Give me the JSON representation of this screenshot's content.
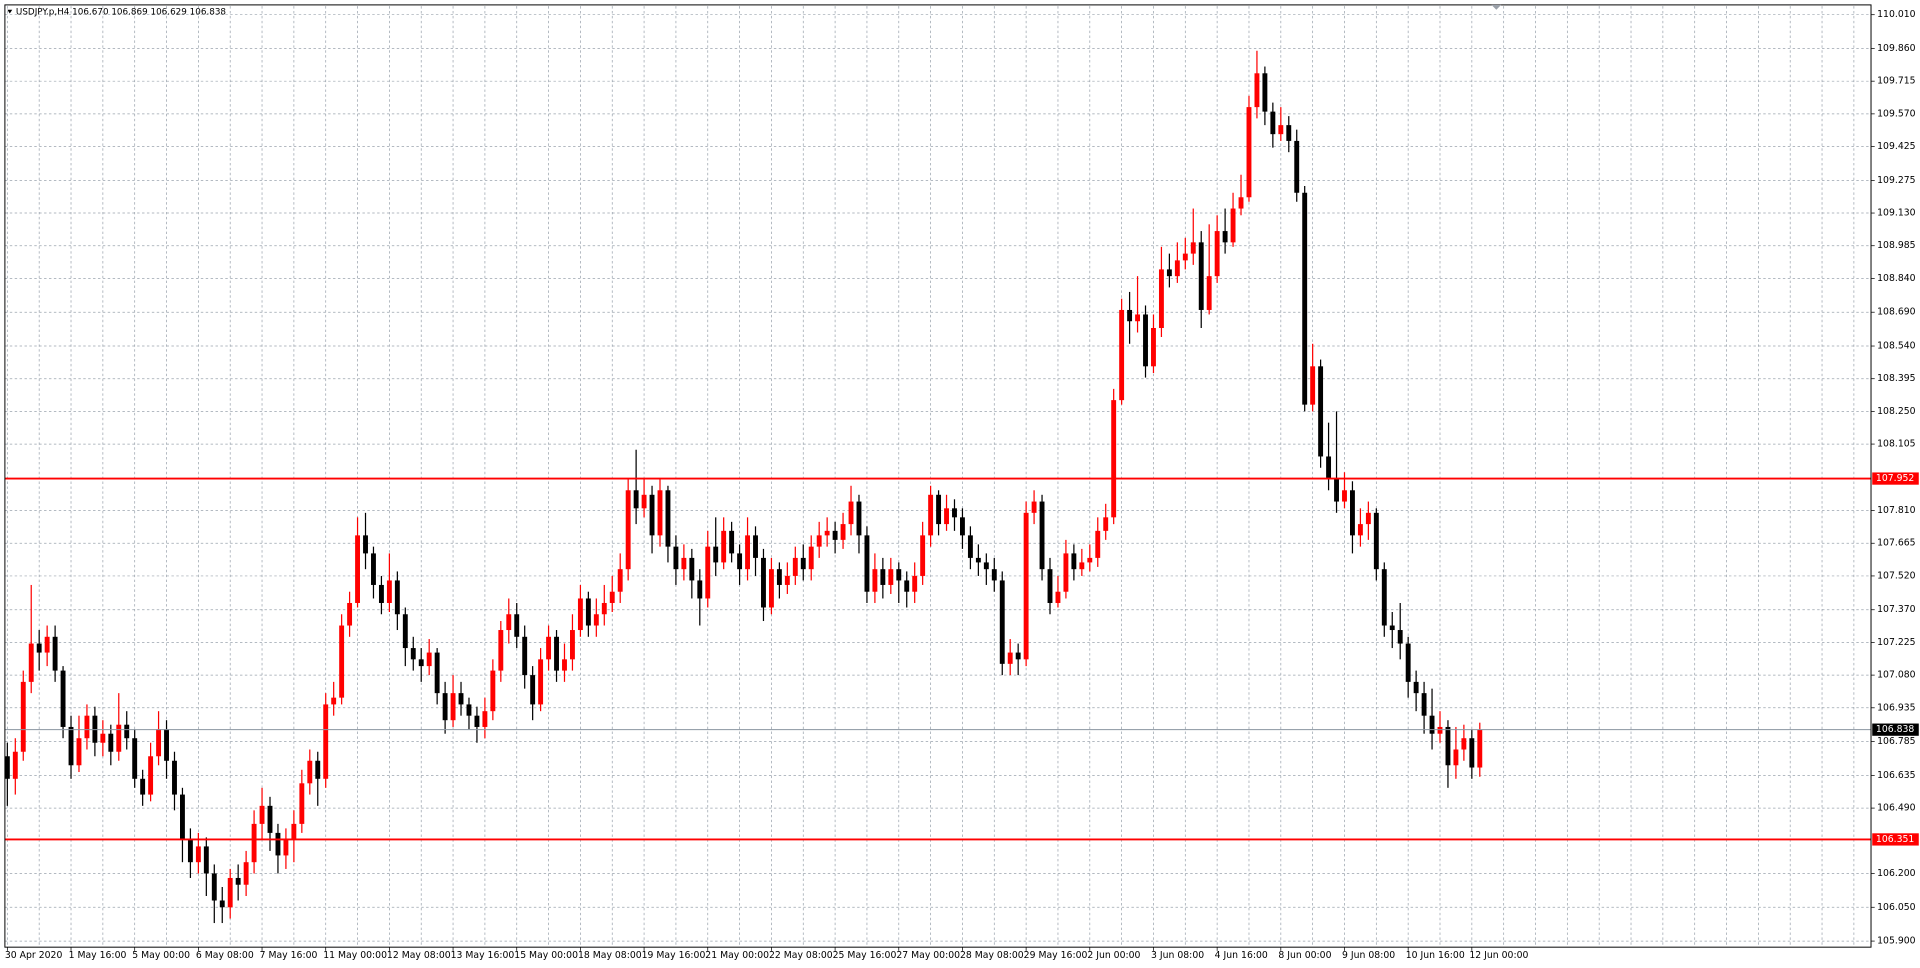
{
  "chart_data": {
    "type": "candlestick",
    "title": "USDJPY.p,H4  106.670 106.869 106.629 106.838",
    "up_color": "#ff0000",
    "down_color": "#000000",
    "grid": true,
    "ylim": [
      105.873,
      110.048
    ],
    "yticks": [
      {
        "value": 110.01,
        "label": "110.010"
      },
      {
        "value": 109.86,
        "label": "109.860"
      },
      109.715,
      {
        "value": 109.57,
        "label": "109.570"
      },
      109.425,
      109.275,
      {
        "value": 109.13,
        "label": "109.130"
      },
      108.985,
      {
        "value": 108.84,
        "label": "108.840"
      },
      {
        "value": 108.69,
        "label": "108.690"
      },
      {
        "value": 108.54,
        "label": "108.540"
      },
      108.395,
      {
        "value": 108.25,
        "label": "108.250"
      },
      108.105,
      {
        "value": 107.81,
        "label": "107.810"
      },
      107.665,
      {
        "value": 107.52,
        "label": "107.520"
      },
      {
        "value": 107.37,
        "label": "107.370"
      },
      107.225,
      {
        "value": 107.08,
        "label": "107.080"
      },
      106.935,
      106.785,
      106.635,
      {
        "value": 106.49,
        "label": "106.490"
      },
      {
        "value": 106.2,
        "label": "106.200"
      },
      {
        "value": 106.05,
        "label": "106.050"
      },
      {
        "value": 105.9,
        "label": "105.900"
      }
    ],
    "levels": [
      {
        "value": 107.952,
        "color": "#ff0000"
      },
      {
        "value": 106.351,
        "color": "#ff0000"
      }
    ],
    "bid": {
      "value": 106.838,
      "color": "#8a94a0"
    },
    "categories": [
      "30 Apr 2020",
      null,
      null,
      null,
      null,
      null,
      null,
      null,
      "1 May 16:00",
      null,
      null,
      null,
      null,
      null,
      null,
      null,
      "5 May 00:00",
      null,
      null,
      null,
      null,
      null,
      null,
      null,
      "6 May 08:00",
      null,
      null,
      null,
      null,
      null,
      null,
      null,
      "7 May 16:00",
      null,
      null,
      null,
      null,
      null,
      null,
      null,
      "11 May 00:00",
      null,
      null,
      null,
      null,
      null,
      null,
      null,
      "12 May 08:00",
      null,
      null,
      null,
      null,
      null,
      null,
      null,
      "13 May 16:00",
      null,
      null,
      null,
      null,
      null,
      null,
      null,
      "15 May 00:00",
      null,
      null,
      null,
      null,
      null,
      null,
      null,
      "18 May 08:00",
      null,
      null,
      null,
      null,
      null,
      null,
      null,
      "19 May 16:00",
      null,
      null,
      null,
      null,
      null,
      null,
      null,
      "21 May 00:00",
      null,
      null,
      null,
      null,
      null,
      null,
      null,
      "22 May 08:00",
      null,
      null,
      null,
      null,
      null,
      null,
      null,
      "25 May 16:00",
      null,
      null,
      null,
      null,
      null,
      null,
      null,
      "27 May 00:00",
      null,
      null,
      null,
      null,
      null,
      null,
      null,
      "28 May 08:00",
      null,
      null,
      null,
      null,
      null,
      null,
      null,
      "29 May 16:00",
      null,
      null,
      null,
      null,
      null,
      null,
      null,
      "2 Jun 00:00",
      null,
      null,
      null,
      null,
      null,
      null,
      null,
      "3 Jun 08:00",
      null,
      null,
      null,
      null,
      null,
      null,
      null,
      "4 Jun 16:00",
      null,
      null,
      null,
      null,
      null,
      null,
      null,
      "8 Jun 00:00",
      null,
      null,
      null,
      null,
      null,
      null,
      null,
      "9 Jun 08:00",
      null,
      null,
      null,
      null,
      null,
      null,
      null,
      "10 Jun 16:00",
      null,
      null,
      null,
      null,
      null,
      null,
      null,
      "12 Jun 00:00",
      null
    ],
    "candles": [
      [
        106.72,
        106.78,
        106.5,
        106.62
      ],
      [
        106.62,
        106.8,
        106.55,
        106.74
      ],
      [
        106.74,
        107.1,
        106.7,
        107.05
      ],
      [
        107.05,
        107.48,
        107.0,
        107.22
      ],
      [
        107.22,
        107.28,
        107.1,
        107.18
      ],
      [
        107.18,
        107.3,
        107.12,
        107.25
      ],
      [
        107.25,
        107.3,
        107.05,
        107.1
      ],
      [
        107.1,
        107.12,
        106.8,
        106.85
      ],
      [
        106.85,
        106.9,
        106.62,
        106.68
      ],
      [
        106.68,
        106.9,
        106.65,
        106.8
      ],
      [
        106.8,
        106.95,
        106.75,
        106.9
      ],
      [
        106.9,
        106.94,
        106.72,
        106.78
      ],
      [
        106.78,
        106.88,
        106.72,
        106.82
      ],
      [
        106.82,
        106.86,
        106.68,
        106.74
      ],
      [
        106.74,
        107.0,
        106.7,
        106.86
      ],
      [
        106.86,
        106.92,
        106.75,
        106.8
      ],
      [
        106.8,
        106.84,
        106.58,
        106.62
      ],
      [
        106.62,
        106.66,
        106.5,
        106.55
      ],
      [
        106.55,
        106.78,
        106.52,
        106.72
      ],
      [
        106.72,
        106.92,
        106.68,
        106.84
      ],
      [
        106.84,
        106.88,
        106.62,
        106.7
      ],
      [
        106.7,
        106.74,
        106.48,
        106.55
      ],
      [
        106.55,
        106.58,
        106.25,
        106.35
      ],
      [
        106.35,
        106.4,
        106.18,
        106.25
      ],
      [
        106.25,
        106.38,
        106.2,
        106.32
      ],
      [
        106.32,
        106.36,
        106.1,
        106.2
      ],
      [
        106.2,
        106.24,
        105.98,
        106.08
      ],
      [
        106.08,
        106.14,
        105.98,
        106.05
      ],
      [
        106.05,
        106.22,
        106.0,
        106.18
      ],
      [
        106.18,
        106.24,
        106.08,
        106.15
      ],
      [
        106.15,
        106.3,
        106.1,
        106.25
      ],
      [
        106.25,
        106.48,
        106.2,
        106.42
      ],
      [
        106.42,
        106.58,
        106.35,
        106.5
      ],
      [
        106.5,
        106.54,
        106.3,
        106.38
      ],
      [
        106.38,
        106.42,
        106.2,
        106.28
      ],
      [
        106.28,
        106.4,
        106.22,
        106.35
      ],
      [
        106.35,
        106.48,
        106.25,
        106.42
      ],
      [
        106.42,
        106.66,
        106.38,
        106.6
      ],
      [
        106.6,
        106.75,
        106.55,
        106.7
      ],
      [
        106.7,
        106.74,
        106.5,
        106.62
      ],
      [
        106.62,
        107.0,
        106.58,
        106.95
      ],
      [
        106.95,
        107.05,
        106.9,
        106.98
      ],
      [
        106.98,
        107.35,
        106.95,
        107.3
      ],
      [
        107.3,
        107.45,
        107.25,
        107.4
      ],
      [
        107.4,
        107.78,
        107.38,
        107.7
      ],
      [
        107.7,
        107.8,
        107.55,
        107.62
      ],
      [
        107.62,
        107.65,
        107.42,
        107.48
      ],
      [
        107.48,
        107.52,
        107.35,
        107.4
      ],
      [
        107.4,
        107.62,
        107.36,
        107.5
      ],
      [
        107.5,
        107.54,
        107.28,
        107.35
      ],
      [
        107.35,
        107.38,
        107.12,
        107.2
      ],
      [
        107.2,
        107.25,
        107.1,
        107.15
      ],
      [
        107.15,
        107.2,
        107.05,
        107.12
      ],
      [
        107.12,
        107.24,
        107.08,
        107.18
      ],
      [
        107.18,
        107.2,
        106.95,
        107.0
      ],
      [
        107.0,
        107.05,
        106.82,
        106.88
      ],
      [
        106.88,
        107.08,
        106.85,
        107.0
      ],
      [
        107.0,
        107.05,
        106.9,
        106.95
      ],
      [
        106.95,
        106.98,
        106.84,
        106.9
      ],
      [
        106.9,
        106.94,
        106.78,
        106.85
      ],
      [
        106.85,
        106.98,
        106.8,
        106.92
      ],
      [
        106.92,
        107.15,
        106.88,
        107.1
      ],
      [
        107.1,
        107.32,
        107.05,
        107.28
      ],
      [
        107.28,
        107.42,
        107.22,
        107.35
      ],
      [
        107.35,
        107.4,
        107.2,
        107.25
      ],
      [
        107.25,
        107.3,
        107.02,
        107.08
      ],
      [
        107.08,
        107.12,
        106.88,
        106.95
      ],
      [
        106.95,
        107.2,
        106.92,
        107.15
      ],
      [
        107.15,
        107.3,
        107.1,
        107.25
      ],
      [
        107.25,
        107.28,
        107.05,
        107.1
      ],
      [
        107.1,
        107.22,
        107.05,
        107.15
      ],
      [
        107.15,
        107.35,
        107.1,
        107.28
      ],
      [
        107.28,
        107.48,
        107.25,
        107.42
      ],
      [
        107.42,
        107.45,
        107.25,
        107.3
      ],
      [
        107.3,
        107.42,
        107.25,
        107.35
      ],
      [
        107.35,
        107.48,
        107.3,
        107.4
      ],
      [
        107.4,
        107.52,
        107.36,
        107.45
      ],
      [
        107.45,
        107.62,
        107.4,
        107.55
      ],
      [
        107.55,
        107.95,
        107.5,
        107.9
      ],
      [
        107.9,
        108.08,
        107.75,
        107.82
      ],
      [
        107.82,
        107.95,
        107.78,
        107.88
      ],
      [
        107.88,
        107.92,
        107.62,
        107.7
      ],
      [
        107.7,
        107.95,
        107.65,
        107.9
      ],
      [
        107.9,
        107.92,
        107.58,
        107.65
      ],
      [
        107.65,
        107.7,
        107.48,
        107.55
      ],
      [
        107.55,
        107.66,
        107.5,
        107.6
      ],
      [
        107.6,
        107.64,
        107.42,
        107.5
      ],
      [
        107.5,
        107.55,
        107.3,
        107.42
      ],
      [
        107.42,
        107.72,
        107.38,
        107.65
      ],
      [
        107.65,
        107.78,
        107.52,
        107.58
      ],
      [
        107.58,
        107.78,
        107.55,
        107.72
      ],
      [
        107.72,
        107.76,
        107.58,
        107.62
      ],
      [
        107.62,
        107.66,
        107.48,
        107.55
      ],
      [
        107.55,
        107.78,
        107.5,
        107.7
      ],
      [
        107.7,
        107.74,
        107.52,
        107.6
      ],
      [
        107.6,
        107.64,
        107.32,
        107.38
      ],
      [
        107.38,
        107.6,
        107.35,
        107.55
      ],
      [
        107.55,
        107.58,
        107.42,
        107.48
      ],
      [
        107.48,
        107.58,
        107.44,
        107.52
      ],
      [
        107.52,
        107.65,
        107.48,
        107.6
      ],
      [
        107.6,
        107.66,
        107.5,
        107.55
      ],
      [
        107.55,
        107.7,
        107.5,
        107.65
      ],
      [
        107.65,
        107.76,
        107.6,
        107.7
      ],
      [
        107.7,
        107.78,
        107.65,
        107.72
      ],
      [
        107.72,
        107.76,
        107.62,
        107.68
      ],
      [
        107.68,
        107.8,
        107.64,
        107.75
      ],
      [
        107.75,
        107.92,
        107.7,
        107.85
      ],
      [
        107.85,
        107.88,
        107.62,
        107.7
      ],
      [
        107.7,
        107.74,
        107.4,
        107.45
      ],
      [
        107.45,
        107.62,
        107.4,
        107.55
      ],
      [
        107.55,
        107.6,
        107.42,
        107.48
      ],
      [
        107.48,
        107.6,
        107.44,
        107.55
      ],
      [
        107.55,
        107.58,
        107.4,
        107.5
      ],
      [
        107.5,
        107.54,
        107.38,
        107.45
      ],
      [
        107.45,
        107.58,
        107.4,
        107.52
      ],
      [
        107.52,
        107.76,
        107.48,
        107.7
      ],
      [
        107.7,
        107.92,
        107.65,
        107.88
      ],
      [
        107.88,
        107.9,
        107.7,
        107.75
      ],
      [
        107.75,
        107.88,
        107.72,
        107.82
      ],
      [
        107.82,
        107.86,
        107.72,
        107.78
      ],
      [
        107.78,
        107.82,
        107.64,
        107.7
      ],
      [
        107.7,
        107.74,
        107.55,
        107.6
      ],
      [
        107.6,
        107.66,
        107.52,
        107.58
      ],
      [
        107.58,
        107.62,
        107.48,
        107.55
      ],
      [
        107.55,
        107.6,
        107.45,
        107.5
      ],
      [
        107.5,
        107.54,
        107.08,
        107.13
      ],
      [
        107.13,
        107.24,
        107.08,
        107.18
      ],
      [
        107.18,
        107.22,
        107.08,
        107.15
      ],
      [
        107.15,
        107.85,
        107.12,
        107.8
      ],
      [
        107.8,
        107.9,
        107.75,
        107.85
      ],
      [
        107.85,
        107.88,
        107.5,
        107.55
      ],
      [
        107.55,
        107.6,
        107.35,
        107.4
      ],
      [
        107.4,
        107.52,
        107.38,
        107.45
      ],
      [
        107.45,
        107.68,
        107.42,
        107.62
      ],
      [
        107.62,
        107.66,
        107.5,
        107.55
      ],
      [
        107.55,
        107.64,
        107.52,
        107.58
      ],
      [
        107.58,
        107.66,
        107.54,
        107.6
      ],
      [
        107.6,
        107.78,
        107.56,
        107.72
      ],
      [
        107.72,
        107.84,
        107.68,
        107.78
      ],
      [
        107.78,
        108.35,
        107.75,
        108.3
      ],
      [
        108.3,
        108.75,
        108.28,
        108.7
      ],
      [
        108.7,
        108.78,
        108.55,
        108.65
      ],
      [
        108.65,
        108.85,
        108.6,
        108.68
      ],
      [
        108.68,
        108.72,
        108.4,
        108.45
      ],
      [
        108.45,
        108.68,
        108.42,
        108.62
      ],
      [
        108.62,
        108.98,
        108.58,
        108.88
      ],
      [
        108.88,
        108.95,
        108.8,
        108.85
      ],
      [
        108.85,
        109.0,
        108.82,
        108.92
      ],
      [
        108.92,
        109.02,
        108.88,
        108.95
      ],
      [
        108.95,
        109.15,
        108.9,
        109.0
      ],
      [
        109.0,
        109.05,
        108.62,
        108.7
      ],
      [
        108.7,
        109.08,
        108.68,
        108.85
      ],
      [
        108.85,
        109.12,
        108.82,
        109.05
      ],
      [
        109.05,
        109.15,
        108.95,
        109.0
      ],
      [
        109.0,
        109.22,
        108.98,
        109.15
      ],
      [
        109.15,
        109.3,
        109.12,
        109.2
      ],
      [
        109.2,
        109.65,
        109.18,
        109.6
      ],
      [
        109.6,
        109.85,
        109.55,
        109.75
      ],
      [
        109.75,
        109.78,
        109.52,
        109.58
      ],
      [
        109.58,
        109.62,
        109.42,
        109.48
      ],
      [
        109.48,
        109.6,
        109.45,
        109.52
      ],
      [
        109.52,
        109.56,
        109.4,
        109.45
      ],
      [
        109.45,
        109.5,
        109.18,
        109.22
      ],
      [
        109.22,
        109.25,
        108.25,
        108.28
      ],
      [
        108.28,
        108.55,
        108.25,
        108.45
      ],
      [
        108.45,
        108.48,
        108.0,
        108.05
      ],
      [
        108.05,
        108.2,
        107.9,
        107.95
      ],
      [
        107.95,
        108.25,
        107.8,
        107.85
      ],
      [
        107.85,
        107.98,
        107.82,
        107.9
      ],
      [
        107.9,
        107.94,
        107.62,
        107.7
      ],
      [
        107.7,
        107.82,
        107.65,
        107.75
      ],
      [
        107.75,
        107.85,
        107.68,
        107.8
      ],
      [
        107.8,
        107.82,
        107.5,
        107.55
      ],
      [
        107.55,
        107.58,
        107.25,
        107.3
      ],
      [
        107.3,
        107.36,
        107.2,
        107.28
      ],
      [
        107.28,
        107.4,
        107.15,
        107.22
      ],
      [
        107.22,
        107.25,
        106.98,
        107.05
      ],
      [
        107.05,
        107.1,
        106.92,
        107.0
      ],
      [
        107.0,
        107.05,
        106.82,
        106.9
      ],
      [
        106.9,
        107.02,
        106.75,
        106.82
      ],
      [
        106.82,
        106.92,
        106.78,
        106.85
      ],
      [
        106.85,
        106.88,
        106.58,
        106.68
      ],
      [
        106.68,
        106.85,
        106.62,
        106.75
      ],
      [
        106.75,
        106.86,
        106.7,
        106.8
      ],
      [
        106.8,
        106.84,
        106.62,
        106.67
      ],
      [
        106.67,
        106.869,
        106.629,
        106.838
      ]
    ]
  }
}
